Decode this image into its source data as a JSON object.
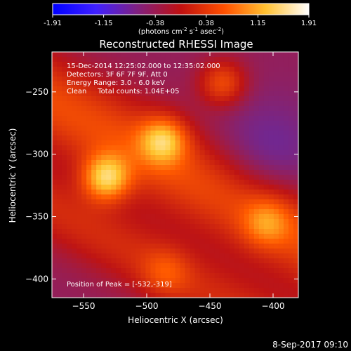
{
  "colorbar": {
    "tick_labels": [
      "-1.91",
      "-1.15",
      "-0.38",
      "0.38",
      "1.15",
      "1.91"
    ],
    "min": -1.91,
    "max": 1.91,
    "units_prefix": "(photons cm",
    "units_sup1": "-2",
    "units_mid": " s",
    "units_sup2": "-1",
    "units_mid2": " asec",
    "units_sup3": "-2",
    "units_suffix": ")"
  },
  "chart_data": {
    "type": "heatmap",
    "title": "Reconstructed RHESSI Image",
    "xlabel": "Heliocentric X (arcsec)",
    "ylabel": "Heliocentric Y (arcsec)",
    "xlim": [
      -575,
      -380
    ],
    "ylim": [
      -415,
      -218
    ],
    "x_ticks": [
      -550,
      -500,
      -450,
      -400
    ],
    "y_ticks": [
      -250,
      -300,
      -350,
      -400
    ],
    "annotations": [
      "15-Dec-2014 12:25:02.000 to 12:35:02.000",
      "Detectors: 3F 6F 7F 9F, Att 0",
      "Energy Range: 3.0 - 6.0 keV",
      "Clean     Total counts: 1.04E+05"
    ],
    "peak_label": "Position of Peak = [-532,-319]",
    "peak": [
      -532,
      -319
    ],
    "colormap": [
      "#0000ff",
      "#6633cc",
      "#802080",
      "#c01010",
      "#ff6000",
      "#ffd040",
      "#ffffff"
    ],
    "sources": [
      {
        "x": -532,
        "y": -319,
        "amplitude": 1.91
      },
      {
        "x": -487,
        "y": -289,
        "amplitude": 1.55
      },
      {
        "x": -440,
        "y": -243,
        "amplitude": 1.1
      },
      {
        "x": -485,
        "y": -395,
        "amplitude": 0.6
      },
      {
        "x": -405,
        "y": -355,
        "amplitude": 0.9
      }
    ]
  },
  "footer": {
    "timestamp": "8-Sep-2017 09:10"
  }
}
